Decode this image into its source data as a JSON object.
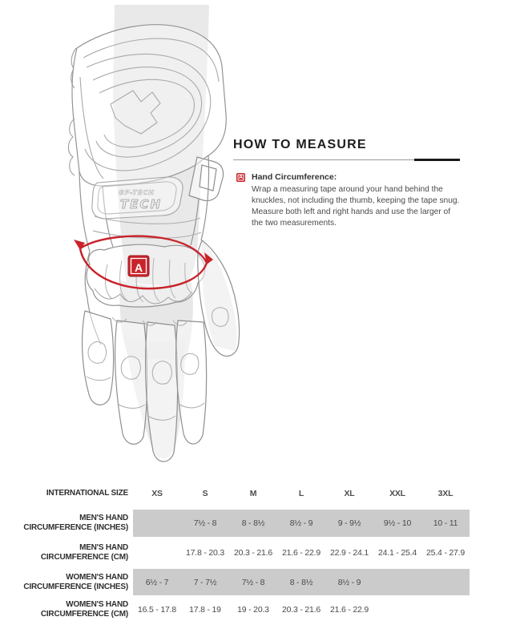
{
  "colors": {
    "accent_red": "#c9232b",
    "band_gray": "#cbcbcb",
    "line_gray": "#9b9b9b",
    "shade_gray": "#e9e9e9"
  },
  "how_to_measure": {
    "title": "HOW TO MEASURE",
    "marker": "A",
    "step_title": "Hand Circumference:",
    "step_body": "Wrap a measuring tape around your hand behind the knuckles, not including the thumb, keeping the tape snug. Measure both left and right hands and use the larger of the two measurements."
  },
  "diagram": {
    "marker": "A",
    "glove_logo_small": "GP-TECH",
    "glove_logo_large": "TECH"
  },
  "size_table": {
    "header_label": "INTERNATIONAL SIZE",
    "sizes": [
      "XS",
      "S",
      "M",
      "L",
      "XL",
      "XXL",
      "3XL"
    ],
    "rows": [
      {
        "label": "MEN'S HAND CIRCUMFERENCE (INCHES)",
        "shaded": true,
        "values": [
          "",
          "7½ - 8",
          "8 - 8½",
          "8½ - 9",
          "9 - 9½",
          "9½ - 10",
          "10 - 11"
        ]
      },
      {
        "label": "MEN'S HAND CIRCUMFERENCE (CM)",
        "shaded": false,
        "values": [
          "",
          "17.8 - 20.3",
          "20.3 - 21.6",
          "21.6 - 22.9",
          "22.9 - 24.1",
          "24.1 - 25.4",
          "25.4 - 27.9"
        ]
      },
      {
        "label": "WOMEN'S HAND CIRCUMFERENCE (INCHES)",
        "shaded": true,
        "values": [
          "6½ - 7",
          "7 - 7½",
          "7½ - 8",
          "8 - 8½",
          "8½ - 9",
          "",
          ""
        ]
      },
      {
        "label": "WOMEN'S HAND CIRCUMFERENCE (CM)",
        "shaded": false,
        "values": [
          "16.5 - 17.8",
          "17.8 - 19",
          "19 - 20.3",
          "20.3 - 21.6",
          "21.6 - 22.9",
          "",
          ""
        ]
      }
    ]
  }
}
